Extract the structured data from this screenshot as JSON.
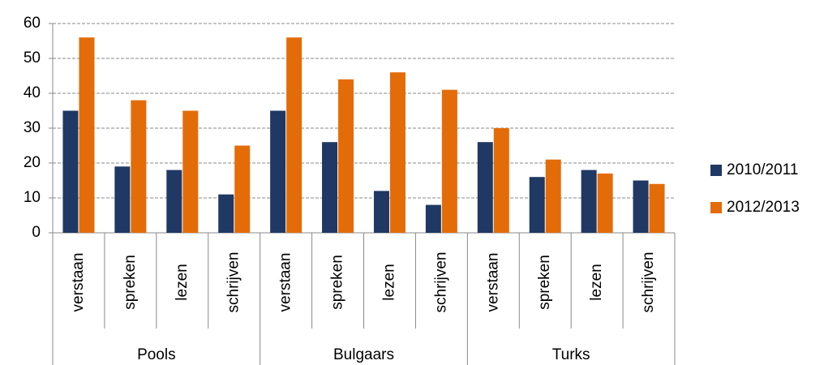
{
  "chart_data": {
    "type": "bar",
    "groups": [
      {
        "name": "Pools",
        "categories": [
          "verstaan",
          "spreken",
          "lezen",
          "schrijven"
        ]
      },
      {
        "name": "Bulgaars",
        "categories": [
          "verstaan",
          "spreken",
          "lezen",
          "schrijven"
        ]
      },
      {
        "name": "Turks",
        "categories": [
          "verstaan",
          "spreken",
          "lezen",
          "schrijven"
        ]
      }
    ],
    "series": [
      {
        "name": "2010/2011",
        "color": "#1f3864",
        "values": [
          35,
          19,
          18,
          11,
          35,
          26,
          12,
          8,
          26,
          16,
          18,
          15
        ]
      },
      {
        "name": "2012/2013",
        "color": "#e36c09",
        "values": [
          56,
          38,
          35,
          25,
          56,
          44,
          46,
          41,
          30,
          21,
          17,
          14
        ]
      }
    ],
    "ylim": [
      0,
      60
    ],
    "yticks": [
      0,
      10,
      20,
      30,
      40,
      50,
      60
    ],
    "grid": true,
    "legend": "right"
  }
}
